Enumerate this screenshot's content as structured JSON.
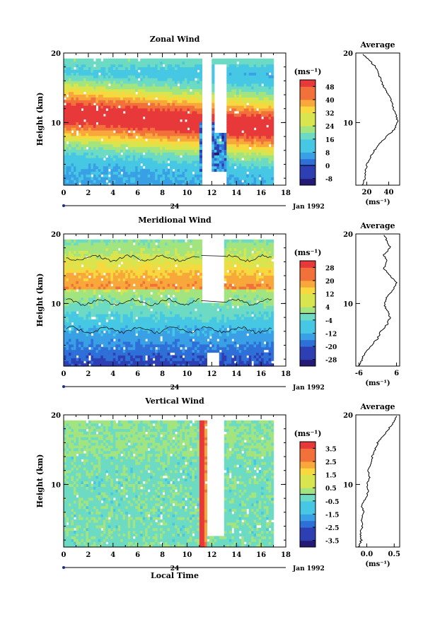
{
  "colors": {
    "jet": [
      "#241a74",
      "#2e3fb4",
      "#2f6fd8",
      "#3aa0e6",
      "#46c8e4",
      "#6ddbc4",
      "#a2e47f",
      "#d8e54f",
      "#f7d93f",
      "#f8a83a",
      "#f2703a",
      "#e8393a"
    ],
    "missing": "#ffffff",
    "ink": "#000000"
  },
  "chart_data": [
    {
      "type": "heatmap",
      "panel": "zonal",
      "title": "Zonal Wind",
      "xlabel": "",
      "ylabel": "Height (km)",
      "xlim": [
        0,
        18
      ],
      "ylim": [
        1,
        20
      ],
      "x_ticks": [
        "0",
        "2",
        "4",
        "6",
        "8",
        "10",
        "12",
        "14",
        "16",
        "18"
      ],
      "y_ticks": [
        "20",
        "10"
      ],
      "date_marker": "24",
      "date_label": "Jan 1992",
      "colorbar": {
        "unit": "(ms⁻¹)",
        "ticks": [
          "48",
          "40",
          "32",
          "24",
          "16",
          "8",
          "0",
          "-8"
        ],
        "range": [
          -12,
          52
        ]
      },
      "average": {
        "title": "Average",
        "xlabel": "(ms⁻¹)",
        "x_ticks": [
          "20",
          "40"
        ],
        "xlim": [
          10,
          50
        ],
        "y_ticks": [
          "20",
          "10"
        ],
        "profile": [
          [
            16,
            1
          ],
          [
            18,
            2
          ],
          [
            19,
            3
          ],
          [
            20,
            4
          ],
          [
            23,
            5
          ],
          [
            27,
            6
          ],
          [
            32,
            7
          ],
          [
            38,
            8
          ],
          [
            45,
            9
          ],
          [
            48,
            10
          ],
          [
            47,
            11
          ],
          [
            44,
            12
          ],
          [
            43,
            13
          ],
          [
            40,
            14
          ],
          [
            36,
            15
          ],
          [
            33,
            16
          ],
          [
            31,
            17
          ],
          [
            28,
            18
          ],
          [
            22,
            19
          ],
          [
            15,
            20
          ]
        ]
      }
    },
    {
      "type": "heatmap",
      "panel": "meridional",
      "title": "Meridional Wind",
      "xlabel": "",
      "ylabel": "Height (km)",
      "xlim": [
        0,
        18
      ],
      "ylim": [
        1,
        20
      ],
      "x_ticks": [
        "0",
        "2",
        "4",
        "6",
        "8",
        "10",
        "12",
        "14",
        "16",
        "18"
      ],
      "y_ticks": [
        "20",
        "10"
      ],
      "date_marker": "24",
      "date_label": "Jan 1992",
      "colorbar": {
        "unit": "(ms⁻¹)",
        "ticks": [
          "28",
          "20",
          "12",
          "4",
          "-4",
          "-12",
          "-20",
          "-28"
        ],
        "range": [
          -32,
          32
        ]
      },
      "average": {
        "title": "Average",
        "xlabel": "(ms⁻¹)",
        "x_ticks": [
          "-6",
          "6"
        ],
        "xlim": [
          -7,
          7
        ],
        "y_ticks": [
          "20",
          "10"
        ],
        "profile": [
          [
            -6,
            1
          ],
          [
            -5,
            2
          ],
          [
            -4,
            3
          ],
          [
            -2,
            4
          ],
          [
            0,
            5
          ],
          [
            1,
            6
          ],
          [
            3,
            7
          ],
          [
            4,
            8
          ],
          [
            3,
            9
          ],
          [
            2,
            10
          ],
          [
            3,
            11
          ],
          [
            5,
            12
          ],
          [
            6,
            13
          ],
          [
            4,
            14
          ],
          [
            2,
            15
          ],
          [
            3,
            16
          ],
          [
            2,
            17
          ],
          [
            4,
            18
          ],
          [
            3,
            19
          ],
          [
            2,
            20
          ]
        ]
      }
    },
    {
      "type": "heatmap",
      "panel": "vertical",
      "title": "Vertical Wind",
      "xlabel": "Local Time",
      "ylabel": "Height (km)",
      "xlim": [
        0,
        18
      ],
      "ylim": [
        1,
        20
      ],
      "x_ticks": [
        "0",
        "2",
        "4",
        "6",
        "8",
        "10",
        "12",
        "14",
        "16",
        "18"
      ],
      "y_ticks": [
        "20",
        "10"
      ],
      "date_marker": "24",
      "date_label": "Jan 1992",
      "colorbar": {
        "unit": "(ms⁻¹)",
        "ticks": [
          "3.5",
          "2.5",
          "1.5",
          "0.5",
          "-0.5",
          "-1.5",
          "-2.5",
          "-3.5"
        ],
        "range": [
          -4,
          4
        ]
      },
      "average": {
        "title": "Average",
        "xlabel": "(ms⁻¹)",
        "x_ticks": [
          "0.0",
          "0.5"
        ],
        "xlim": [
          -0.2,
          0.6
        ],
        "y_ticks": [
          "20",
          "10"
        ],
        "profile": [
          [
            -0.15,
            1
          ],
          [
            -0.1,
            2
          ],
          [
            -0.12,
            3
          ],
          [
            -0.08,
            4
          ],
          [
            -0.1,
            5
          ],
          [
            -0.05,
            6
          ],
          [
            -0.1,
            7
          ],
          [
            -0.02,
            8
          ],
          [
            0.02,
            9
          ],
          [
            0.0,
            10
          ],
          [
            0.05,
            11
          ],
          [
            0.02,
            12
          ],
          [
            0.08,
            13
          ],
          [
            0.1,
            14
          ],
          [
            0.15,
            15
          ],
          [
            0.2,
            16
          ],
          [
            0.3,
            17
          ],
          [
            0.4,
            18
          ],
          [
            0.5,
            19
          ],
          [
            0.55,
            20
          ]
        ]
      }
    }
  ]
}
